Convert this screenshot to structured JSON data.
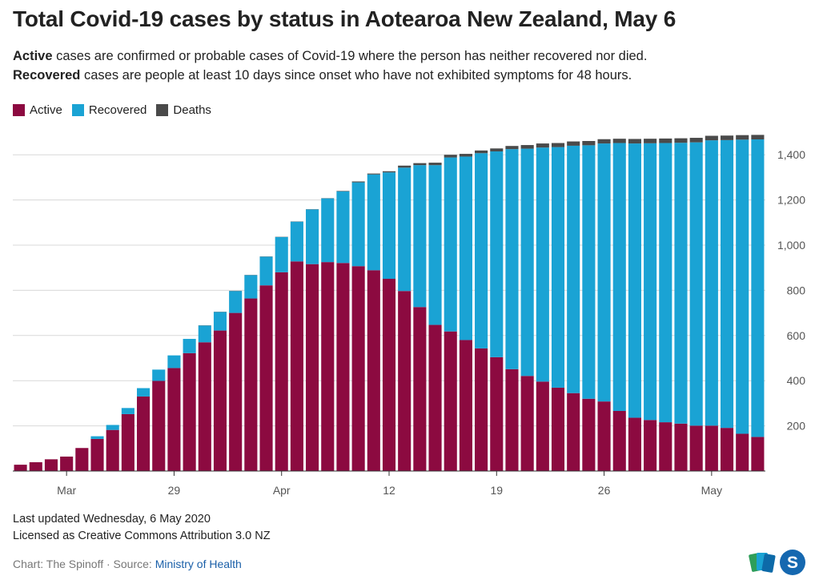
{
  "title": "Total Covid-19 cases by status in Aotearoa New Zealand, May 6",
  "subtitle": {
    "line1_bold": "Active",
    "line1_rest": " cases are confirmed or probable cases of Covid-19 where the person has neither recovered nor died.",
    "line2_bold": "Recovered",
    "line2_rest": " cases are people at least 10 days since onset who have not exhibited symptoms for 48 hours."
  },
  "legend": [
    {
      "label": "Active",
      "color": "#8c0a40"
    },
    {
      "label": "Recovered",
      "color": "#1aa3d4"
    },
    {
      "label": "Deaths",
      "color": "#4a4a4a"
    }
  ],
  "chart_data": {
    "type": "bar",
    "stacked": true,
    "x_tick_labels": [
      {
        "label": "Mar",
        "index": 3
      },
      {
        "label": "29",
        "index": 10
      },
      {
        "label": "Apr",
        "index": 17
      },
      {
        "label": "12",
        "index": 24
      },
      {
        "label": "19",
        "index": 31
      },
      {
        "label": "26",
        "index": 38
      },
      {
        "label": "May",
        "index": 45
      }
    ],
    "y_ticks": [
      200,
      400,
      600,
      800,
      1000,
      1200,
      1400
    ],
    "ylim": [
      0,
      1500
    ],
    "grid": true,
    "y_axis_side": "right",
    "series": [
      {
        "name": "Active",
        "color": "#8c0a40",
        "values": [
          28,
          39,
          52,
          64,
          102,
          142,
          182,
          252,
          330,
          399,
          456,
          522,
          570,
          622,
          700,
          764,
          822,
          880,
          928,
          916,
          925,
          921,
          907,
          889,
          851,
          797,
          726,
          647,
          618,
          580,
          543,
          504,
          451,
          421,
          396,
          369,
          345,
          320,
          308,
          266,
          236,
          226,
          216,
          210,
          201,
          201,
          191,
          165,
          151
        ]
      },
      {
        "name": "Recovered",
        "color": "#1aa3d4",
        "values": [
          0,
          0,
          0,
          0,
          0,
          12,
          22,
          27,
          37,
          50,
          56,
          63,
          74,
          82,
          97,
          103,
          127,
          156,
          176,
          242,
          282,
          317,
          371,
          424,
          471,
          546,
          628,
          707,
          770,
          812,
          864,
          911,
          974,
          1006,
          1036,
          1065,
          1095,
          1122,
          1142,
          1186,
          1214,
          1225,
          1236,
          1243,
          1254,
          1263,
          1274,
          1302,
          1317
        ]
      },
      {
        "name": "Deaths",
        "color": "#4a4a4a",
        "values": [
          0,
          0,
          0,
          0,
          0,
          0,
          0,
          0,
          0,
          0,
          0,
          0,
          1,
          1,
          1,
          1,
          1,
          1,
          1,
          1,
          1,
          2,
          4,
          4,
          5,
          9,
          9,
          11,
          12,
          12,
          12,
          13,
          14,
          16,
          18,
          18,
          19,
          19,
          19,
          19,
          20,
          20,
          20,
          20,
          20,
          20,
          20,
          20,
          20
        ]
      }
    ]
  },
  "footer": {
    "updated": "Last updated Wednesday, 6 May 2020",
    "license": "Licensed as Creative Commons Attribution 3.0 NZ",
    "credit": "Chart: The Spinoff · Source: ",
    "source_link": "Ministry of Health"
  },
  "logos": {
    "spinoff_letter": "S"
  }
}
